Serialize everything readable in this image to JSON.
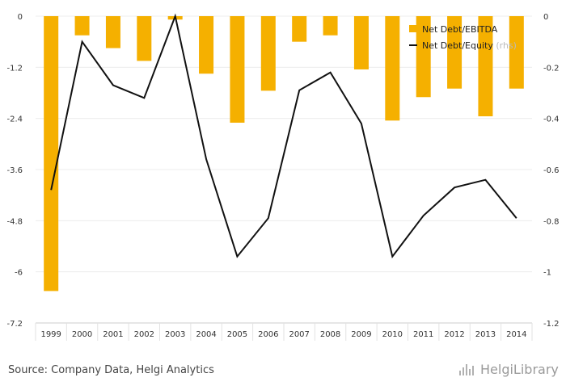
{
  "chart_data": {
    "type": "bar+line",
    "categories": [
      "1999",
      "2000",
      "2001",
      "2002",
      "2003",
      "2004",
      "2005",
      "2006",
      "2007",
      "2008",
      "2009",
      "2010",
      "2011",
      "2012",
      "2013",
      "2014"
    ],
    "series": [
      {
        "name": "Net Debt/EBITDA",
        "type": "bar",
        "axis": "left",
        "color": "#f5b000",
        "values": [
          -6.45,
          -0.45,
          -0.75,
          -1.05,
          -0.08,
          -1.35,
          -2.5,
          -1.75,
          -0.6,
          -0.45,
          -1.25,
          -2.45,
          -1.9,
          -1.7,
          -2.35,
          -1.7
        ]
      },
      {
        "name": "Net Debt/Equity",
        "type": "line",
        "axis": "right",
        "color": "#111111",
        "values": [
          -0.68,
          -0.1,
          -0.27,
          -0.32,
          0.0,
          -0.56,
          -0.94,
          -0.79,
          -0.29,
          -0.22,
          -0.42,
          -0.94,
          -0.78,
          -0.67,
          -0.64,
          -0.79
        ]
      }
    ],
    "left_axis": {
      "ylim": [
        -7.2,
        0
      ],
      "ticks": [
        "0",
        "-1.2",
        "-2.4",
        "-3.6",
        "-4.8",
        "-6",
        "-7.2"
      ]
    },
    "right_axis": {
      "ylim": [
        -1.2,
        0
      ],
      "ticks": [
        "0",
        "-0.2",
        "-0.4",
        "-0.6",
        "-0.8",
        "-1",
        "-1.2"
      ]
    },
    "legend": {
      "placement": "top-right",
      "rhs_suffix": "(rhs)"
    },
    "grid": true
  },
  "footer": {
    "source": "Source: Company Data, Helgi Analytics",
    "logo_text": "HelgiLibrary"
  }
}
